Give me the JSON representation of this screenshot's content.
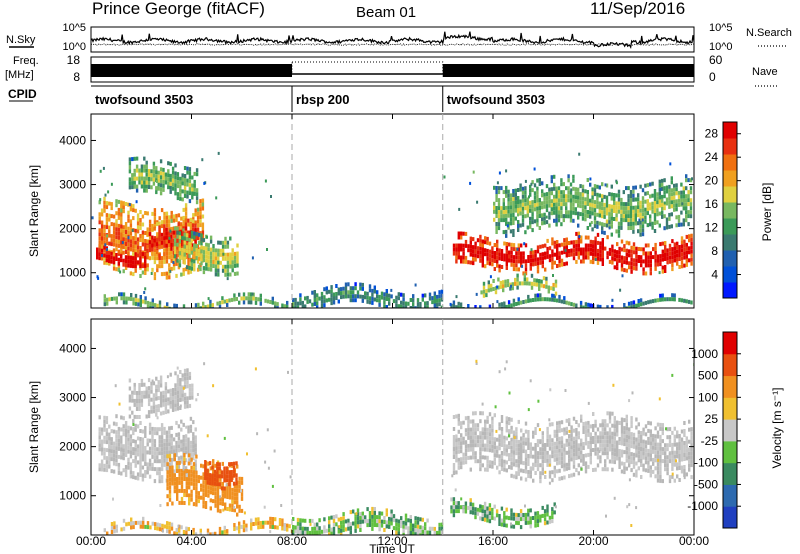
{
  "header": {
    "station": "Prince George (fitACF)",
    "beam": "Beam 01",
    "date": "11/Sep/2016"
  },
  "side_labels": {
    "nsky": "N.Sky",
    "freq_line1": "Freq.",
    "freq_line2": "[MHz]",
    "cpid": "CPID",
    "nsearch": "N.Search",
    "nave": "Nave"
  },
  "noise_panel": {
    "left_ticks": [
      "10^5",
      "10^0"
    ],
    "right_ticks": [
      "10^5",
      "10^0"
    ]
  },
  "freq_panel": {
    "left_ticks": [
      "18",
      "8"
    ],
    "right_ticks": [
      "60",
      "0"
    ]
  },
  "cpid_segments": [
    {
      "label": "twofsound 3503",
      "start_h": 0,
      "end_h": 8
    },
    {
      "label": "rbsp 200",
      "start_h": 8,
      "end_h": 14
    },
    {
      "label": "twofsound 3503",
      "start_h": 14,
      "end_h": 24
    }
  ],
  "x_axis": {
    "label": "Time UT",
    "ticks": [
      "00:00",
      "04:00",
      "08:00",
      "12:00",
      "16:00",
      "20:00",
      "00:00"
    ],
    "range_h": [
      0,
      24
    ]
  },
  "chart_data": [
    {
      "type": "heatmap",
      "panel": "power",
      "ylabel": "Slant Range [km]",
      "yticks": [
        "1000",
        "2000",
        "3000",
        "4000"
      ],
      "ylim": [
        200,
        4600
      ],
      "colorbar_label": "Power [dB]",
      "colorbar_ticks": [
        "4",
        "8",
        "12",
        "16",
        "20",
        "24",
        "28"
      ],
      "colorbar_colors": [
        "#0018ff",
        "#0050d8",
        "#2060b0",
        "#3a7a70",
        "#3b9a58",
        "#78b860",
        "#e0d040",
        "#f0a020",
        "#f07010",
        "#e83010",
        "#e00000"
      ],
      "clim": [
        0,
        30
      ],
      "mode_boundaries_h": [
        8,
        14
      ],
      "echo_regions": [
        {
          "t": [
            0.3,
            4.5
          ],
          "r": [
            1000,
            2600
          ],
          "value": 18
        },
        {
          "t": [
            0.2,
            2.2
          ],
          "r": [
            1250,
            1600
          ],
          "value": 26
        },
        {
          "t": [
            2.2,
            4.3
          ],
          "r": [
            1350,
            2100
          ],
          "value": 22
        },
        {
          "t": [
            3.3,
            5.8
          ],
          "r": [
            1100,
            1950
          ],
          "value": 12
        },
        {
          "t": [
            1.5,
            4.2
          ],
          "r": [
            2700,
            3500
          ],
          "value": 10
        },
        {
          "t": [
            0.5,
            7.8
          ],
          "r": [
            220,
            420
          ],
          "value": 10
        },
        {
          "t": [
            8.0,
            14.0
          ],
          "r": [
            220,
            650
          ],
          "value": 6
        },
        {
          "t": [
            14.4,
            23.9
          ],
          "r": [
            1150,
            1800
          ],
          "value": 24
        },
        {
          "t": [
            16.0,
            23.9
          ],
          "r": [
            2000,
            3100
          ],
          "value": 10
        },
        {
          "t": [
            14.3,
            23.9
          ],
          "r": [
            220,
            400
          ],
          "value": 6
        },
        {
          "t": [
            15.5,
            18.5
          ],
          "r": [
            550,
            850
          ],
          "value": 12
        }
      ]
    },
    {
      "type": "heatmap",
      "panel": "velocity",
      "ylabel": "Slant Range [km]",
      "yticks": [
        "1000",
        "2000",
        "3000",
        "4000"
      ],
      "ylim": [
        200,
        4600
      ],
      "colorbar_label": "Velocity [m s⁻¹]",
      "colorbar_ticks": [
        "1000",
        "500",
        "100",
        "25",
        "-25",
        "-100",
        "-500",
        "-1000"
      ],
      "colorbar_colors": [
        "#2040c0",
        "#2d6ab0",
        "#3a8a60",
        "#60c040",
        "#c8c8c8",
        "#f0c030",
        "#f09020",
        "#e85010",
        "#e00000"
      ],
      "ground_scatter_color": "#b8b8b8",
      "mode_boundaries_h": [
        8,
        14
      ],
      "echo_regions": [
        {
          "t": [
            0.3,
            4.2
          ],
          "r": [
            1400,
            2600
          ],
          "value": "ground"
        },
        {
          "t": [
            1.5,
            4.0
          ],
          "r": [
            2700,
            3500
          ],
          "value": "ground"
        },
        {
          "t": [
            3.0,
            6.0
          ],
          "r": [
            700,
            1750
          ],
          "value": -200
        },
        {
          "t": [
            4.5,
            5.8
          ],
          "r": [
            1300,
            1800
          ],
          "value": -800
        },
        {
          "t": [
            0.5,
            8.0
          ],
          "r": [
            220,
            450
          ],
          "value": -60
        },
        {
          "t": [
            8.0,
            14.0
          ],
          "r": [
            220,
            650
          ],
          "value": 60
        },
        {
          "t": [
            14.4,
            23.9
          ],
          "r": [
            1400,
            2600
          ],
          "value": "ground"
        },
        {
          "t": [
            14.3,
            18.5
          ],
          "r": [
            500,
            850
          ],
          "value": 80
        }
      ]
    }
  ]
}
